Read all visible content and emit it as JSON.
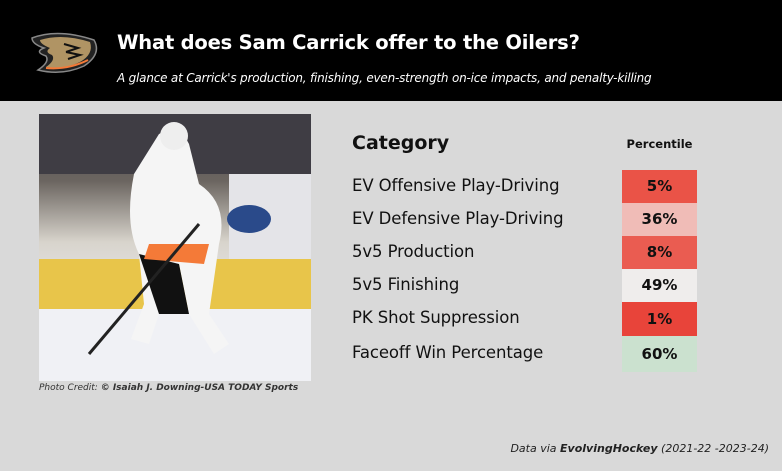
{
  "header": {
    "title": "What does Sam Carrick offer to the Oilers?",
    "subtitle": "A glance at Carrick's production, finishing, even-strength on-ice impacts, and penalty-killing",
    "logo": "anaheim-ducks-logo"
  },
  "photo": {
    "caption_prefix": "Photo Credit: ",
    "caption_credit": "© Isaiah J. Downing-USA TODAY Sports"
  },
  "table": {
    "category_header": "Category",
    "percentile_header": "Percentile",
    "rows": [
      {
        "category": "EV Offensive Play-Driving",
        "percentile": "5%",
        "color": "#ea5347"
      },
      {
        "category": "EV Defensive Play-Driving",
        "percentile": "36%",
        "color": "#f0bcb7"
      },
      {
        "category": "5v5 Production",
        "percentile": "8%",
        "color": "#ea5c51"
      },
      {
        "category": "5v5 Finishing",
        "percentile": "49%",
        "color": "#efedec"
      },
      {
        "category": "PK Shot Suppression",
        "percentile": "1%",
        "color": "#e8443a"
      },
      {
        "category": "Faceoff Win Percentage",
        "percentile": "60%",
        "color": "#cbe1cf"
      }
    ]
  },
  "footer": {
    "prefix": "Data via ",
    "source": "EvolvingHockey",
    "range": " (2021-22 -2023-24)"
  }
}
